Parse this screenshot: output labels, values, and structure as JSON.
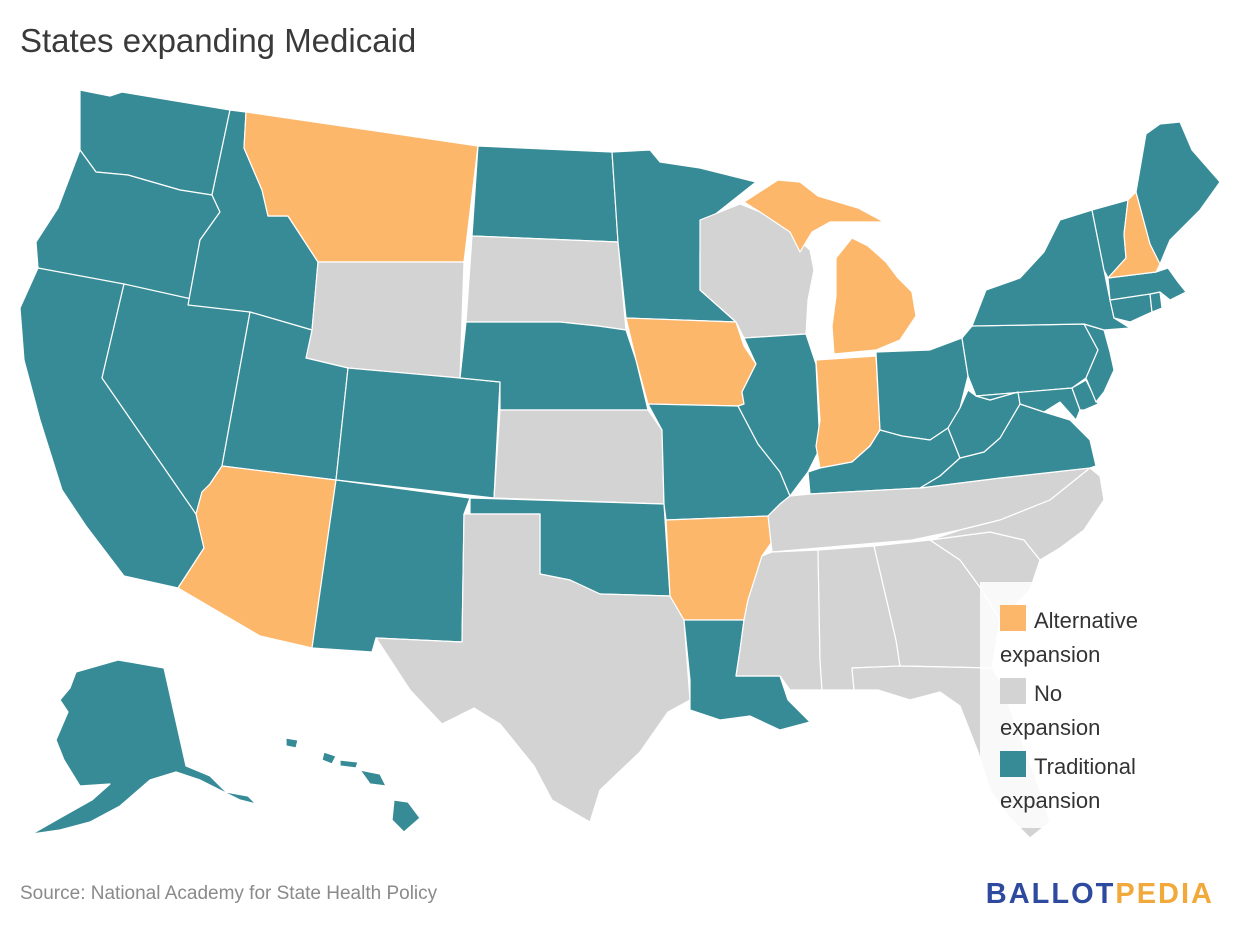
{
  "title": "States expanding Medicaid",
  "source": "Source: National Academy for State Health Policy",
  "logo": {
    "part1": "BALLOT",
    "part2": "PEDIA",
    "color1": "#2e4a9e",
    "color2": "#f2a93b"
  },
  "colors": {
    "alternative": "#fdb76b",
    "none": "#d3d3d3",
    "traditional": "#368b96"
  },
  "legend": [
    {
      "key": "alternative",
      "line1": "Alternative",
      "line2": "expansion"
    },
    {
      "key": "none",
      "line1": "No",
      "line2": "expansion"
    },
    {
      "key": "traditional",
      "line1": "Traditional",
      "line2": "expansion"
    }
  ],
  "states": {
    "WA": "traditional",
    "OR": "traditional",
    "CA": "traditional",
    "NV": "traditional",
    "ID": "traditional",
    "MT": "alternative",
    "WY": "none",
    "UT": "traditional",
    "AZ": "alternative",
    "CO": "traditional",
    "NM": "traditional",
    "ND": "traditional",
    "SD": "none",
    "NE": "traditional",
    "KS": "none",
    "OK": "traditional",
    "TX": "none",
    "MN": "traditional",
    "IA": "alternative",
    "MO": "traditional",
    "AR": "alternative",
    "LA": "traditional",
    "WI": "none",
    "IL": "traditional",
    "MI": "alternative",
    "IN": "alternative",
    "OH": "traditional",
    "KY": "traditional",
    "TN": "none",
    "MS": "none",
    "AL": "none",
    "GA": "none",
    "FL": "none",
    "SC": "none",
    "NC": "none",
    "VA": "traditional",
    "WV": "traditional",
    "PA": "traditional",
    "NY": "traditional",
    "VT": "traditional",
    "NH": "alternative",
    "ME": "traditional",
    "MA": "traditional",
    "RI": "traditional",
    "CT": "traditional",
    "NJ": "traditional",
    "DE": "traditional",
    "MD": "traditional",
    "AK": "traditional",
    "HI": "traditional"
  }
}
